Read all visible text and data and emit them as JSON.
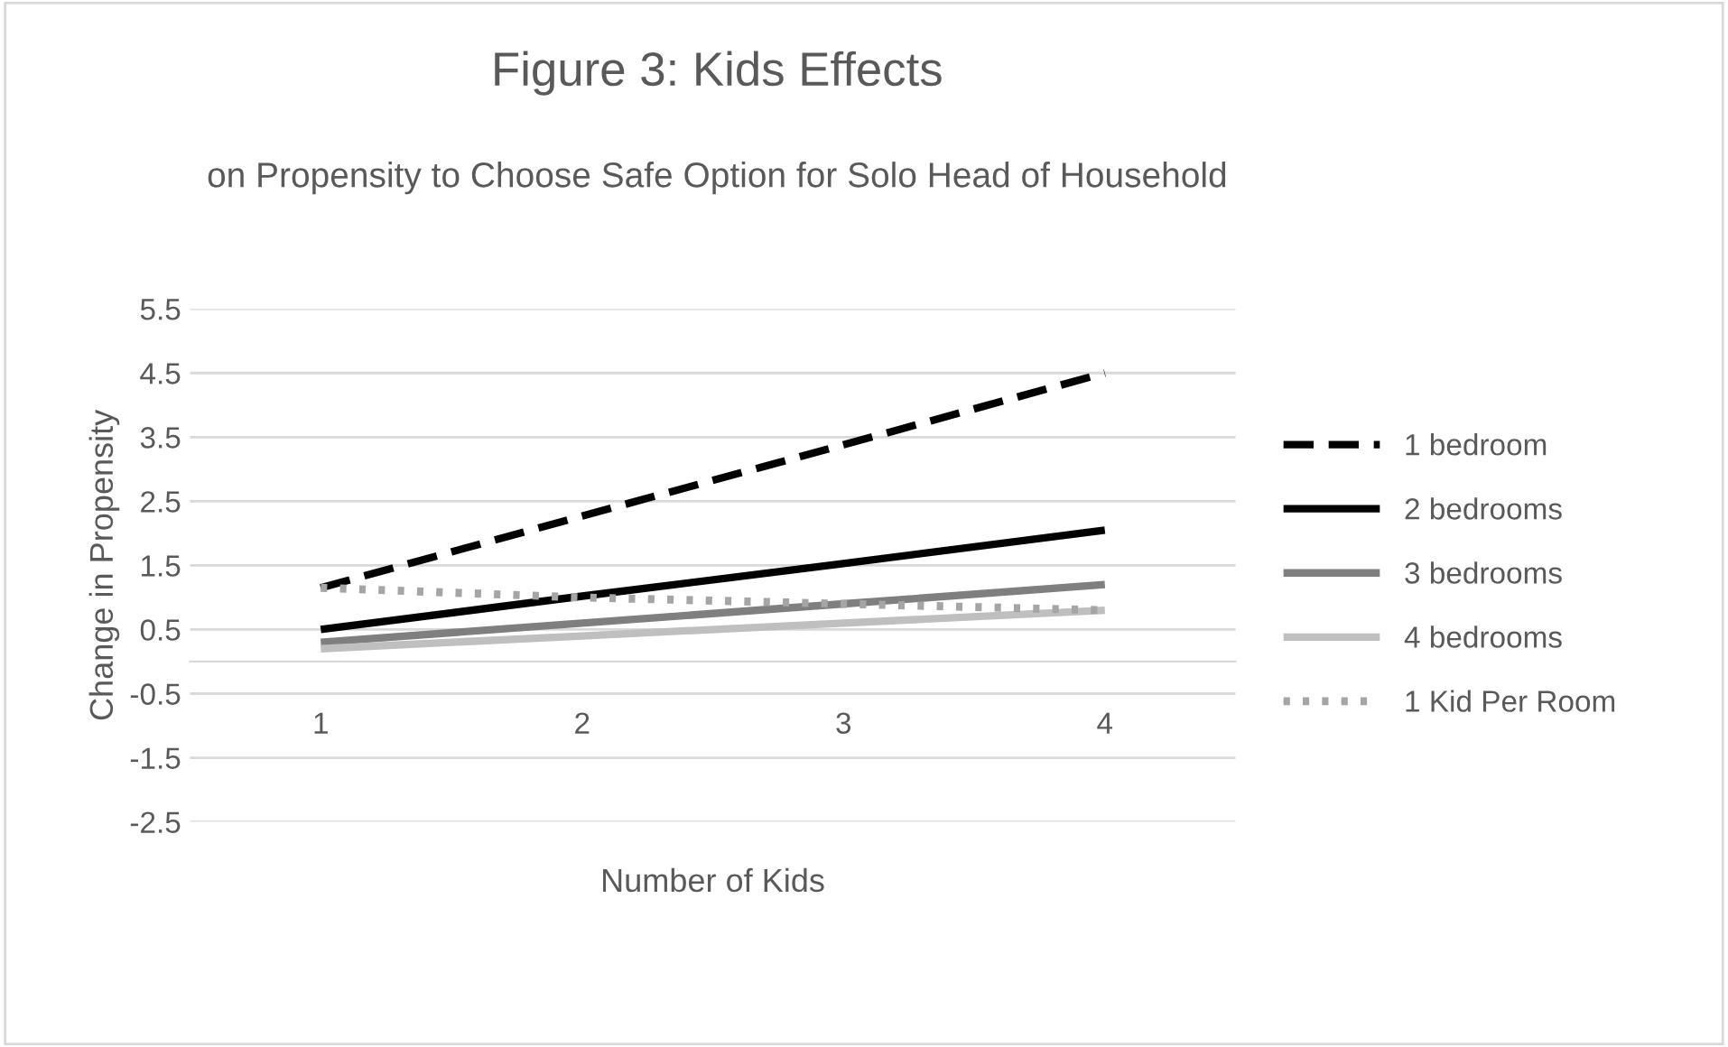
{
  "chart_data": {
    "type": "line",
    "title": "Figure 3: Kids Effects",
    "subtitle": "on Propensity to Choose Safe Option for Solo Head of Household",
    "xlabel": "Number of Kids",
    "ylabel": "Change in Propensity",
    "categories": [
      "1",
      "2",
      "3",
      "4"
    ],
    "series": [
      {
        "name": "1 bedroom",
        "color": "#000000",
        "line_style": "dashed",
        "values": [
          1.15,
          2.27,
          3.38,
          4.5
        ]
      },
      {
        "name": "2 bedrooms",
        "color": "#000000",
        "line_style": "solid",
        "values": [
          0.5,
          1.02,
          1.53,
          2.05
        ]
      },
      {
        "name": "3 bedrooms",
        "color": "#7f7f7f",
        "line_style": "solid",
        "values": [
          0.3,
          0.6,
          0.9,
          1.2
        ]
      },
      {
        "name": "4 bedrooms",
        "color": "#bfbfbf",
        "line_style": "solid",
        "values": [
          0.2,
          0.4,
          0.6,
          0.8
        ]
      },
      {
        "name": "1 Kid Per Room",
        "color": "#a5a5a5",
        "line_style": "dotted",
        "values": [
          1.15,
          1.0,
          0.9,
          0.8
        ]
      }
    ],
    "ylim": [
      -2.5,
      5.5
    ],
    "yticks": [
      -2.5,
      -1.5,
      -0.5,
      0.5,
      1.5,
      2.5,
      3.5,
      4.5,
      5.5
    ],
    "grid": "y",
    "legend": "right",
    "marker": "none"
  }
}
